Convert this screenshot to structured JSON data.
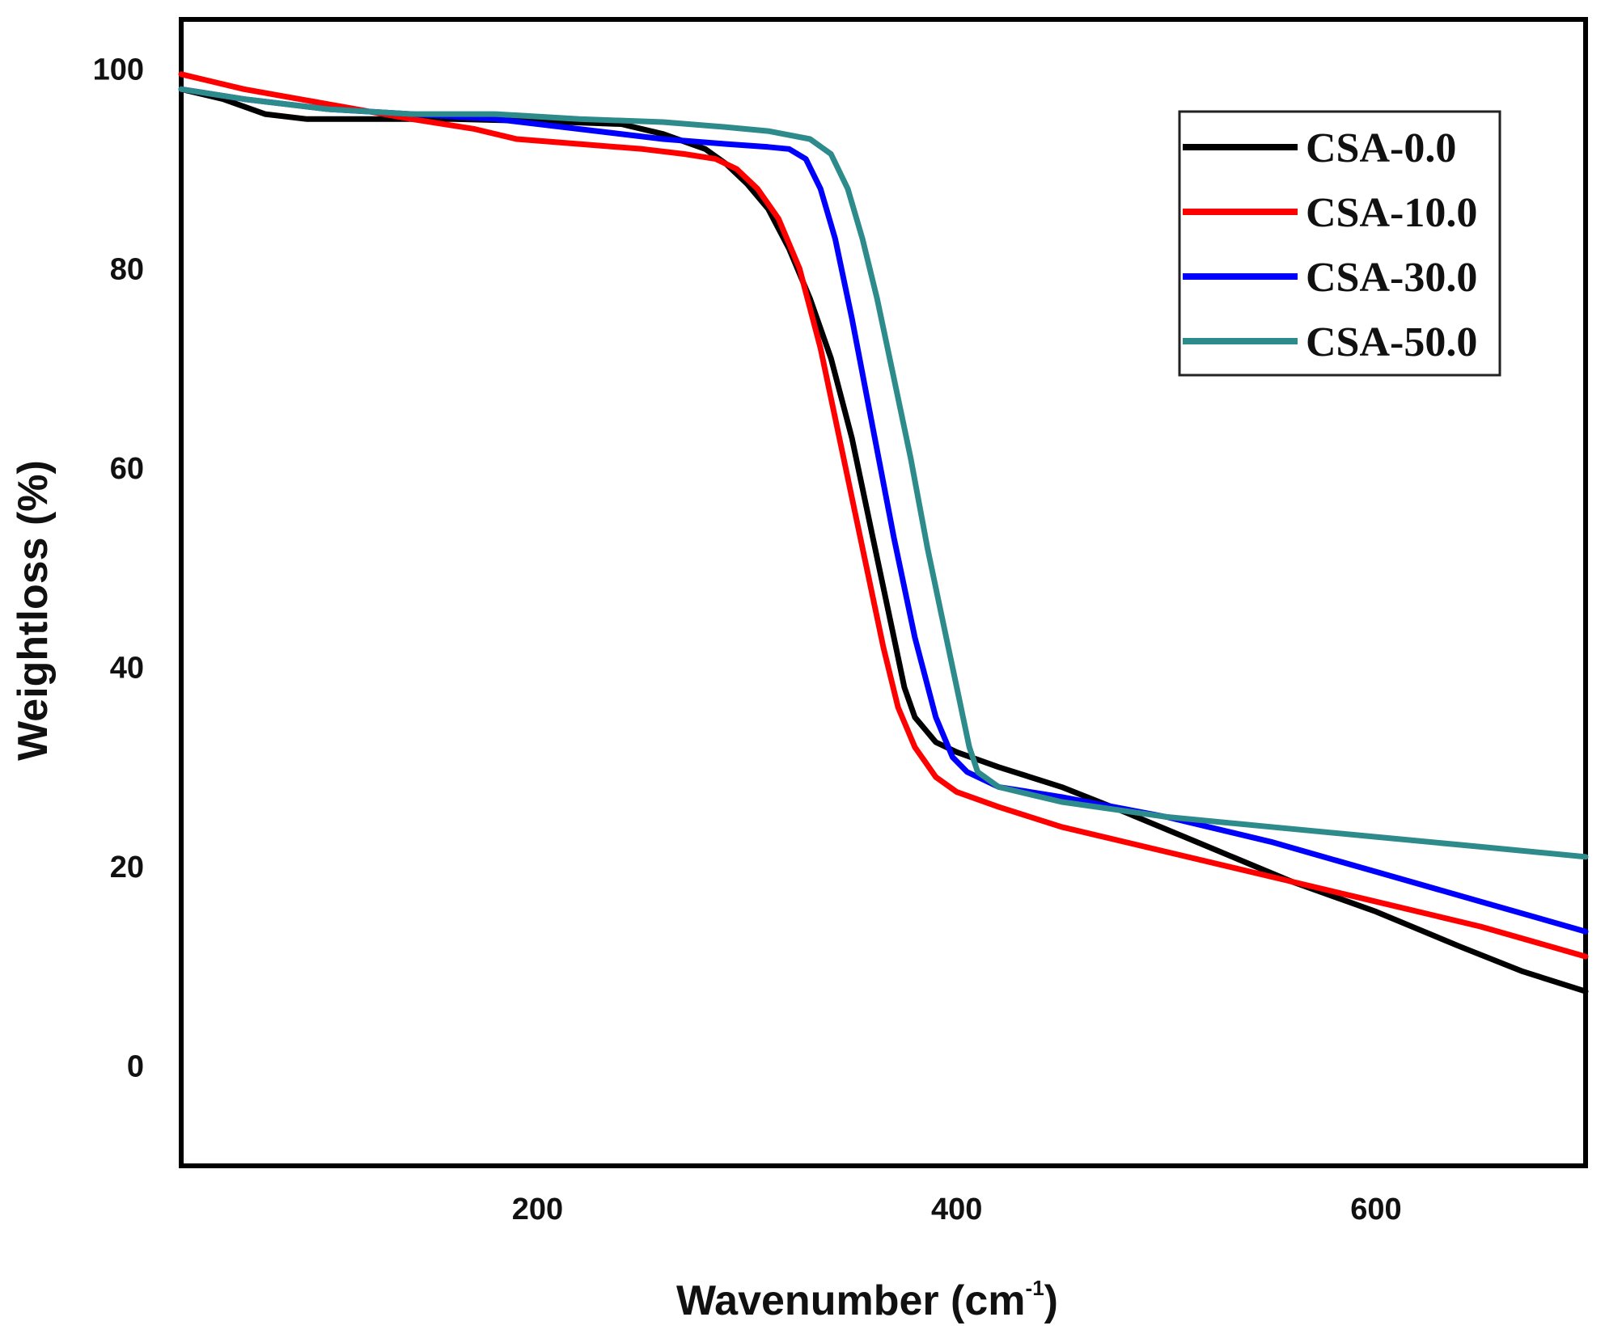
{
  "chart_data": {
    "type": "line",
    "title": "",
    "xlabel": "Wavenumber (cm",
    "xlabel_sup": "-1",
    "xlabel_close": ")",
    "ylabel": "Weightloss (%)",
    "xlim": [
      30,
      700
    ],
    "ylim": [
      -10,
      105
    ],
    "xticks": [
      200,
      400,
      600
    ],
    "yticks": [
      0,
      20,
      40,
      60,
      80,
      100
    ],
    "grid": false,
    "legend_position": "top-right",
    "series": [
      {
        "name": "CSA-0.0",
        "color": "#000000",
        "points": [
          [
            30,
            98
          ],
          [
            50,
            97
          ],
          [
            70,
            95.5
          ],
          [
            90,
            95
          ],
          [
            120,
            95
          ],
          [
            160,
            95
          ],
          [
            200,
            94.8
          ],
          [
            240,
            94.5
          ],
          [
            260,
            93.5
          ],
          [
            280,
            92
          ],
          [
            290,
            90.5
          ],
          [
            300,
            88.5
          ],
          [
            310,
            86
          ],
          [
            320,
            82
          ],
          [
            330,
            77
          ],
          [
            340,
            71
          ],
          [
            350,
            63
          ],
          [
            360,
            53
          ],
          [
            370,
            43
          ],
          [
            375,
            38
          ],
          [
            380,
            35
          ],
          [
            390,
            32.5
          ],
          [
            400,
            31.5
          ],
          [
            420,
            30
          ],
          [
            450,
            28
          ],
          [
            480,
            25.5
          ],
          [
            520,
            22
          ],
          [
            560,
            18.5
          ],
          [
            600,
            15.5
          ],
          [
            640,
            12
          ],
          [
            670,
            9.5
          ],
          [
            700,
            7.5
          ]
        ]
      },
      {
        "name": "CSA-10.0",
        "color": "#ff0000",
        "points": [
          [
            30,
            99.5
          ],
          [
            60,
            98
          ],
          [
            100,
            96.5
          ],
          [
            140,
            95
          ],
          [
            170,
            94
          ],
          [
            190,
            93
          ],
          [
            220,
            92.5
          ],
          [
            250,
            92
          ],
          [
            270,
            91.5
          ],
          [
            285,
            91
          ],
          [
            295,
            90
          ],
          [
            305,
            88
          ],
          [
            315,
            85
          ],
          [
            325,
            80
          ],
          [
            335,
            72
          ],
          [
            345,
            62
          ],
          [
            355,
            52
          ],
          [
            365,
            42
          ],
          [
            372,
            36
          ],
          [
            380,
            32
          ],
          [
            390,
            29
          ],
          [
            400,
            27.5
          ],
          [
            420,
            26
          ],
          [
            450,
            24
          ],
          [
            500,
            21.5
          ],
          [
            550,
            19
          ],
          [
            600,
            16.5
          ],
          [
            650,
            14
          ],
          [
            700,
            11
          ]
        ]
      },
      {
        "name": "CSA-30.0",
        "color": "#0000ff",
        "points": [
          [
            30,
            98
          ],
          [
            60,
            97
          ],
          [
            100,
            96
          ],
          [
            140,
            95.5
          ],
          [
            180,
            95
          ],
          [
            220,
            94
          ],
          [
            260,
            93
          ],
          [
            290,
            92.5
          ],
          [
            310,
            92.2
          ],
          [
            320,
            92
          ],
          [
            328,
            91
          ],
          [
            335,
            88
          ],
          [
            342,
            83
          ],
          [
            350,
            75
          ],
          [
            360,
            64
          ],
          [
            370,
            53
          ],
          [
            380,
            43
          ],
          [
            390,
            35
          ],
          [
            398,
            31
          ],
          [
            405,
            29.5
          ],
          [
            420,
            28
          ],
          [
            450,
            27
          ],
          [
            500,
            25
          ],
          [
            550,
            22.5
          ],
          [
            600,
            19.5
          ],
          [
            650,
            16.5
          ],
          [
            700,
            13.5
          ]
        ]
      },
      {
        "name": "CSA-50.0",
        "color": "#2e8b8b",
        "points": [
          [
            30,
            98
          ],
          [
            60,
            97
          ],
          [
            100,
            96
          ],
          [
            140,
            95.5
          ],
          [
            180,
            95.5
          ],
          [
            220,
            95
          ],
          [
            260,
            94.7
          ],
          [
            290,
            94.2
          ],
          [
            310,
            93.8
          ],
          [
            330,
            93
          ],
          [
            340,
            91.5
          ],
          [
            348,
            88
          ],
          [
            355,
            83
          ],
          [
            362,
            77
          ],
          [
            370,
            69
          ],
          [
            378,
            61
          ],
          [
            386,
            52
          ],
          [
            394,
            44
          ],
          [
            401,
            37
          ],
          [
            406,
            32
          ],
          [
            410,
            29.5
          ],
          [
            420,
            28
          ],
          [
            450,
            26.5
          ],
          [
            500,
            25
          ],
          [
            550,
            24
          ],
          [
            600,
            23
          ],
          [
            650,
            22
          ],
          [
            700,
            21
          ]
        ]
      }
    ]
  }
}
